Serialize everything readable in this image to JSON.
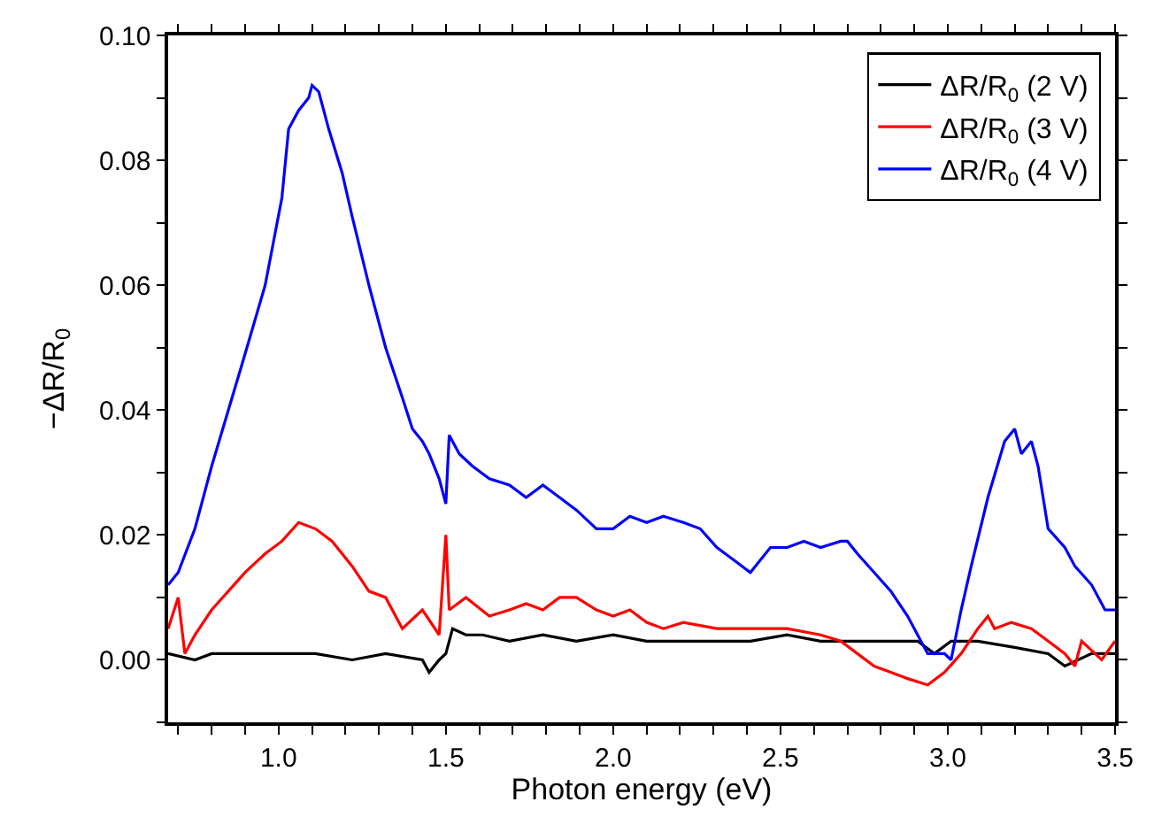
{
  "chart_data": {
    "type": "line",
    "xlabel": "Photon energy (eV)",
    "ylabel": "−ΔR/R$_{0}$",
    "xlim": [
      0.67,
      3.5
    ],
    "ylim": [
      -0.01,
      0.1
    ],
    "xticks": [
      {
        "value": 0.7,
        "label": null
      },
      {
        "value": 0.8,
        "label": null
      },
      {
        "value": 0.9,
        "label": null
      },
      {
        "value": 1.0,
        "label": "1.0"
      },
      {
        "value": 1.1,
        "label": null
      },
      {
        "value": 1.2,
        "label": null
      },
      {
        "value": 1.3,
        "label": null
      },
      {
        "value": 1.4,
        "label": null
      },
      {
        "value": 1.5,
        "label": "1.5"
      },
      {
        "value": 1.6,
        "label": null
      },
      {
        "value": 1.7,
        "label": null
      },
      {
        "value": 1.8,
        "label": null
      },
      {
        "value": 1.9,
        "label": null
      },
      {
        "value": 2.0,
        "label": "2.0"
      },
      {
        "value": 2.1,
        "label": null
      },
      {
        "value": 2.2,
        "label": null
      },
      {
        "value": 2.3,
        "label": null
      },
      {
        "value": 2.4,
        "label": null
      },
      {
        "value": 2.5,
        "label": "2.5"
      },
      {
        "value": 2.6,
        "label": null
      },
      {
        "value": 2.7,
        "label": null
      },
      {
        "value": 2.8,
        "label": null
      },
      {
        "value": 2.9,
        "label": null
      },
      {
        "value": 3.0,
        "label": "3.0"
      },
      {
        "value": 3.1,
        "label": null
      },
      {
        "value": 3.2,
        "label": null
      },
      {
        "value": 3.3,
        "label": null
      },
      {
        "value": 3.4,
        "label": null
      },
      {
        "value": 3.5,
        "label": "3.5"
      }
    ],
    "yticks": [
      {
        "value": -0.01,
        "label": null
      },
      {
        "value": 0.0,
        "label": "0.00"
      },
      {
        "value": 0.01,
        "label": null
      },
      {
        "value": 0.02,
        "label": "0.02"
      },
      {
        "value": 0.03,
        "label": null
      },
      {
        "value": 0.04,
        "label": "0.04"
      },
      {
        "value": 0.05,
        "label": null
      },
      {
        "value": 0.06,
        "label": "0.06"
      },
      {
        "value": 0.07,
        "label": null
      },
      {
        "value": 0.08,
        "label": "0.08"
      },
      {
        "value": 0.09,
        "label": null
      },
      {
        "value": 0.1,
        "label": "0.10"
      }
    ],
    "legend": "top right",
    "marker": "none",
    "line_style": "solid",
    "series": [
      {
        "name": "ΔR/R$_{0}$ (2 V)",
        "color": "#000000",
        "x": [
          0.67,
          0.75,
          0.8,
          0.9,
          1.01,
          1.11,
          1.22,
          1.32,
          1.43,
          1.45,
          1.48,
          1.5,
          1.52,
          1.56,
          1.61,
          1.69,
          1.79,
          1.89,
          2.0,
          2.1,
          2.21,
          2.31,
          2.41,
          2.52,
          2.62,
          2.73,
          2.83,
          2.91,
          2.96,
          3.01,
          3.09,
          3.2,
          3.3,
          3.35,
          3.43,
          3.5
        ],
        "values": [
          0.001,
          0.0,
          0.001,
          0.001,
          0.001,
          0.001,
          0.0,
          0.001,
          0.0,
          -0.002,
          0.0,
          0.001,
          0.005,
          0.004,
          0.004,
          0.003,
          0.004,
          0.003,
          0.004,
          0.003,
          0.003,
          0.003,
          0.003,
          0.004,
          0.003,
          0.003,
          0.003,
          0.003,
          0.001,
          0.003,
          0.003,
          0.002,
          0.001,
          -0.001,
          0.001,
          0.001
        ]
      },
      {
        "name": "ΔR/R$_{0}$ (3 V)",
        "color": "#ff0000",
        "x": [
          0.67,
          0.7,
          0.72,
          0.75,
          0.8,
          0.85,
          0.9,
          0.96,
          1.01,
          1.06,
          1.11,
          1.16,
          1.22,
          1.27,
          1.32,
          1.37,
          1.43,
          1.48,
          1.5,
          1.51,
          1.56,
          1.63,
          1.69,
          1.74,
          1.79,
          1.84,
          1.89,
          1.95,
          2.0,
          2.05,
          2.1,
          2.15,
          2.21,
          2.31,
          2.41,
          2.52,
          2.62,
          2.68,
          2.73,
          2.78,
          2.83,
          2.88,
          2.94,
          2.99,
          3.04,
          3.09,
          3.12,
          3.14,
          3.19,
          3.25,
          3.3,
          3.35,
          3.38,
          3.4,
          3.46,
          3.5
        ],
        "values": [
          0.005,
          0.01,
          0.001,
          0.004,
          0.008,
          0.011,
          0.014,
          0.017,
          0.019,
          0.022,
          0.021,
          0.019,
          0.015,
          0.011,
          0.01,
          0.005,
          0.008,
          0.004,
          0.02,
          0.008,
          0.01,
          0.007,
          0.008,
          0.009,
          0.008,
          0.01,
          0.01,
          0.008,
          0.007,
          0.008,
          0.006,
          0.005,
          0.006,
          0.005,
          0.005,
          0.005,
          0.004,
          0.003,
          0.001,
          -0.001,
          -0.002,
          -0.003,
          -0.004,
          -0.002,
          0.001,
          0.005,
          0.007,
          0.005,
          0.006,
          0.005,
          0.003,
          0.001,
          -0.001,
          0.003,
          0.0,
          0.003
        ]
      },
      {
        "name": "ΔR/R$_{0}$ (4 V)",
        "color": "#0000ff",
        "x": [
          0.67,
          0.7,
          0.75,
          0.8,
          0.85,
          0.9,
          0.96,
          1.01,
          1.03,
          1.06,
          1.09,
          1.1,
          1.12,
          1.15,
          1.19,
          1.22,
          1.27,
          1.32,
          1.37,
          1.4,
          1.43,
          1.45,
          1.48,
          1.5,
          1.51,
          1.54,
          1.58,
          1.63,
          1.69,
          1.74,
          1.79,
          1.84,
          1.89,
          1.95,
          2.0,
          2.05,
          2.1,
          2.15,
          2.21,
          2.26,
          2.31,
          2.36,
          2.41,
          2.47,
          2.52,
          2.57,
          2.62,
          2.68,
          2.7,
          2.73,
          2.78,
          2.83,
          2.88,
          2.94,
          2.99,
          3.01,
          3.04,
          3.07,
          3.12,
          3.17,
          3.2,
          3.22,
          3.25,
          3.27,
          3.3,
          3.35,
          3.38,
          3.43,
          3.47,
          3.5
        ],
        "values": [
          0.012,
          0.014,
          0.021,
          0.031,
          0.04,
          0.049,
          0.06,
          0.074,
          0.085,
          0.088,
          0.09,
          0.092,
          0.091,
          0.085,
          0.078,
          0.071,
          0.06,
          0.05,
          0.042,
          0.037,
          0.035,
          0.033,
          0.029,
          0.025,
          0.036,
          0.033,
          0.031,
          0.029,
          0.028,
          0.026,
          0.028,
          0.026,
          0.024,
          0.021,
          0.021,
          0.023,
          0.022,
          0.023,
          0.022,
          0.021,
          0.018,
          0.016,
          0.014,
          0.018,
          0.018,
          0.019,
          0.018,
          0.019,
          0.019,
          0.017,
          0.014,
          0.011,
          0.007,
          0.001,
          0.001,
          0.0,
          0.008,
          0.015,
          0.026,
          0.035,
          0.037,
          0.033,
          0.035,
          0.031,
          0.021,
          0.018,
          0.015,
          0.012,
          0.008,
          0.008
        ]
      }
    ]
  }
}
